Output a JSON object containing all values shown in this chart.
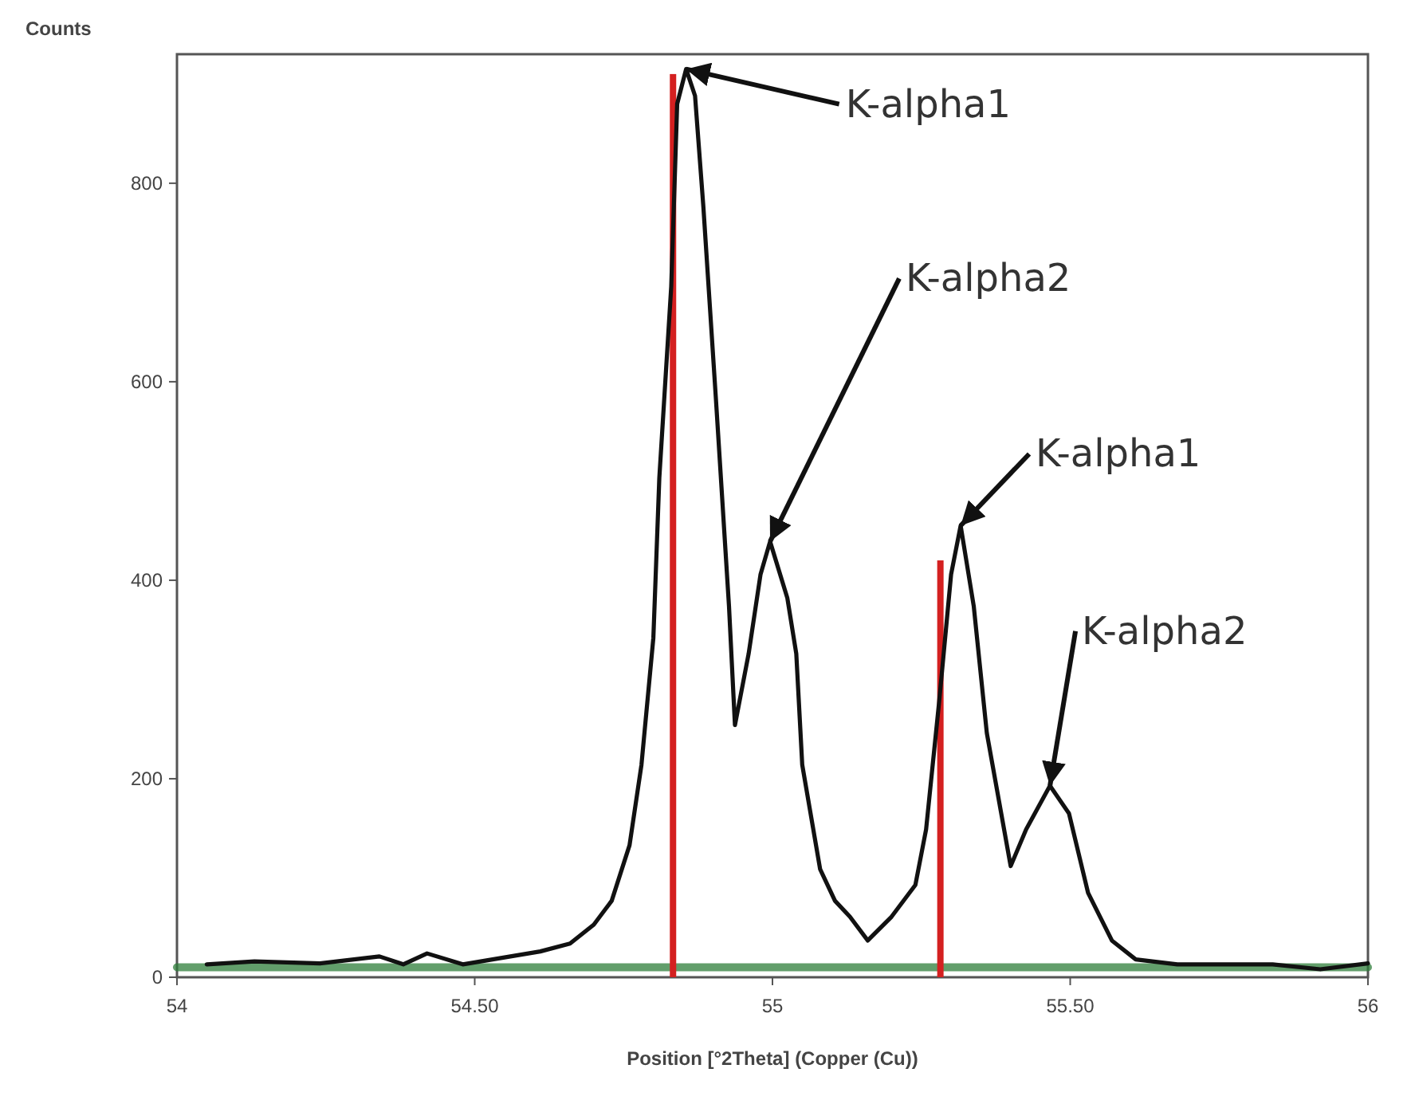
{
  "chart_data": {
    "type": "line",
    "xlabel": "Position [°2Theta] (Copper (Cu))",
    "ylabel": "Counts",
    "xlim": [
      54,
      56
    ],
    "ylim": [
      0,
      930
    ],
    "xticks": [
      54,
      {
        "value": 54.5,
        "label": "54.50"
      },
      55,
      {
        "value": 55.5,
        "label": "55.50"
      },
      56
    ],
    "yticks": [
      0,
      200,
      400,
      600,
      800
    ],
    "grid": false,
    "marker": "none",
    "line_style": "solid",
    "series": [
      {
        "type": "line",
        "color": "#2e7d3a",
        "x": [
          54,
          56
        ],
        "values": [
          10,
          10
        ]
      },
      {
        "type": "bar",
        "color": "#d42020",
        "x": [
          54.833,
          55.282
        ],
        "values": [
          910,
          420
        ]
      },
      {
        "color": "#111111",
        "x": [
          54.05,
          54.13,
          54.24,
          54.34,
          54.38,
          54.42,
          54.48,
          54.56,
          54.61,
          54.66,
          54.7,
          54.73,
          54.76,
          54.78,
          54.8,
          54.81,
          54.83,
          54.84,
          54.855,
          54.87,
          54.884,
          54.905,
          54.927,
          54.937,
          54.96,
          54.98,
          54.996,
          55.025,
          55.04,
          55.05,
          55.08,
          55.105,
          55.13,
          55.16,
          55.2,
          55.24,
          55.258,
          55.28,
          55.3,
          55.316,
          55.338,
          55.36,
          55.4,
          55.426,
          55.466,
          55.498,
          55.53,
          55.57,
          55.61,
          55.68,
          55.84,
          55.92,
          56.0
        ],
        "values": [
          13,
          16,
          14,
          21,
          13,
          24,
          13,
          21,
          26,
          34,
          53,
          77,
          133,
          214,
          342,
          503,
          696,
          880,
          915,
          888,
          776,
          583,
          374,
          254,
          326,
          406,
          439,
          382,
          326,
          214,
          109,
          77,
          61,
          37,
          61,
          93,
          149,
          278,
          406,
          455,
          374,
          246,
          112,
          149,
          193,
          165,
          85,
          37,
          18,
          13,
          13,
          8,
          14
        ]
      }
    ],
    "annotations": [
      {
        "text": "K-alpha1",
        "x": 54.855,
        "y": 915
      },
      {
        "text": "K-alpha2",
        "x": 54.996,
        "y": 439
      },
      {
        "text": "K-alpha1",
        "x": 55.316,
        "y": 455
      },
      {
        "text": "K-alpha2",
        "x": 55.466,
        "y": 193
      }
    ]
  }
}
